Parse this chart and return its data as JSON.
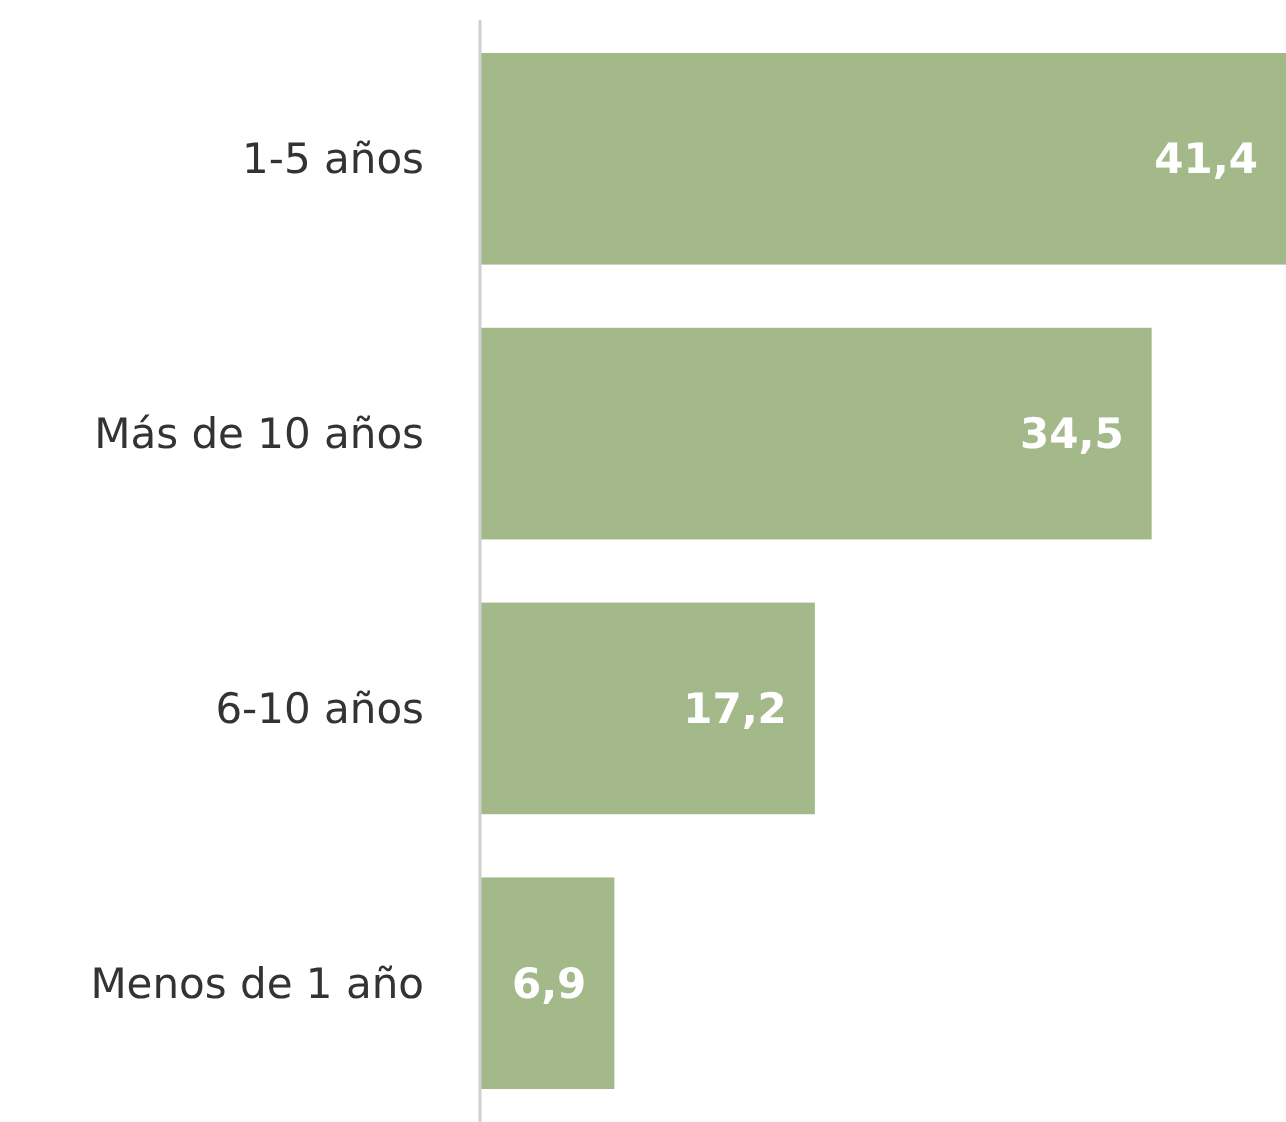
{
  "chart_data": {
    "type": "bar",
    "orientation": "horizontal",
    "categories": [
      "1-5 años",
      "Más de 10 años",
      "6-10 años",
      "Menos de 1 año"
    ],
    "values": [
      41.4,
      34.5,
      17.2,
      6.9
    ],
    "value_labels": [
      "41,4",
      "34,5",
      "17,2",
      "6,9"
    ],
    "color": "#a3b98a"
  }
}
